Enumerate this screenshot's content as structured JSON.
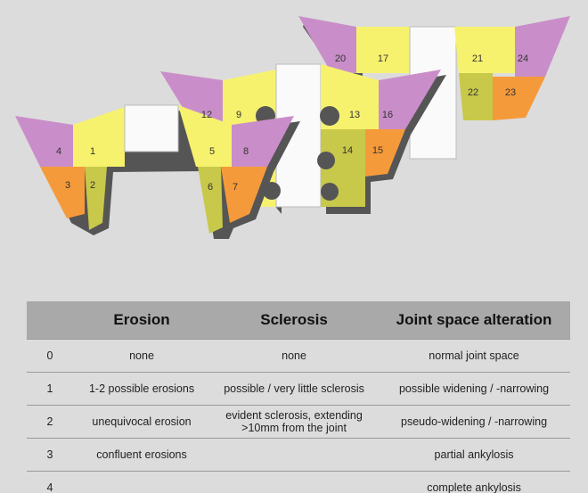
{
  "regions": [
    {
      "label": 1
    },
    {
      "label": 2
    },
    {
      "label": 3
    },
    {
      "label": 4
    },
    {
      "label": 5
    },
    {
      "label": 6
    },
    {
      "label": 7
    },
    {
      "label": 8
    },
    {
      "label": 9
    },
    {
      "label": 12
    },
    {
      "label": 13
    },
    {
      "label": 14
    },
    {
      "label": 15
    },
    {
      "label": 16
    },
    {
      "label": 17
    },
    {
      "label": 20
    },
    {
      "label": 21
    },
    {
      "label": 22
    },
    {
      "label": 23
    },
    {
      "label": 24
    }
  ],
  "table": {
    "header": {
      "erosion": "Erosion",
      "sclerosis": "Sclerosis",
      "joint_space": "Joint space alteration"
    },
    "rows": [
      {
        "grade": 0,
        "erosion": "none",
        "sclerosis": "none",
        "joint_space": "normal joint space"
      },
      {
        "grade": 1,
        "erosion": "1-2 possible erosions",
        "sclerosis": "possible / very little sclerosis",
        "joint_space": "possible widening / -narrowing"
      },
      {
        "grade": 2,
        "erosion": "unequivocal erosion",
        "sclerosis": "evident sclerosis, extending >10mm from the joint",
        "joint_space": "pseudo-widening / -narrowing"
      },
      {
        "grade": 3,
        "erosion": "confluent erosions",
        "joint_space": "partial ankylosis"
      },
      {
        "grade": 4,
        "joint_space": "complete ankylosis"
      }
    ]
  }
}
